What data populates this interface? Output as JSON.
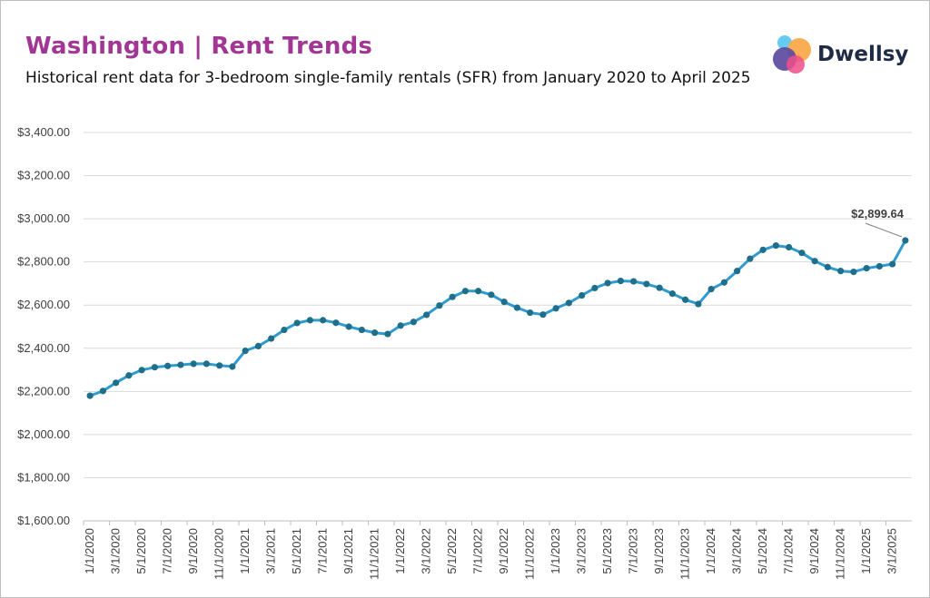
{
  "header": {
    "title": "Washington | Rent Trends",
    "subtitle": "Historical rent data for 3-bedroom single-family rentals (SFR) from January 2020 to April 2025"
  },
  "logo": {
    "text": "Dwellsy"
  },
  "colors": {
    "title": "#a23694",
    "line": "#2e9bd1",
    "marker": "#1f6f8b"
  },
  "chart_data": {
    "type": "line",
    "title": "Washington | Rent Trends",
    "ylim": [
      1600,
      3400
    ],
    "yticks": [
      "$1,600.00",
      "$1,800.00",
      "$2,000.00",
      "$2,200.00",
      "$2,400.00",
      "$2,600.00",
      "$2,800.00",
      "$3,000.00",
      "$3,200.00",
      "$3,400.00"
    ],
    "xtick_labels": [
      "1/1/2020",
      "3/1/2020",
      "5/1/2020",
      "7/1/2020",
      "9/1/2020",
      "11/1/2020",
      "1/1/2021",
      "3/1/2021",
      "5/1/2021",
      "7/1/2021",
      "9/1/2021",
      "11/1/2021",
      "1/1/2022",
      "3/1/2022",
      "5/1/2022",
      "7/1/2022",
      "9/1/2022",
      "11/1/2022",
      "1/1/2023",
      "3/1/2023",
      "5/1/2023",
      "7/1/2023",
      "9/1/2023",
      "11/1/2023",
      "1/1/2024",
      "3/1/2024",
      "5/1/2024",
      "7/1/2024",
      "9/1/2024",
      "11/1/2024",
      "1/1/2025",
      "3/1/2025"
    ],
    "grid": true,
    "series": [
      {
        "values": [
          2180,
          2202,
          2240,
          2274,
          2299,
          2312,
          2318,
          2323,
          2328,
          2328,
          2320,
          2315,
          2388,
          2410,
          2445,
          2485,
          2517,
          2530,
          2530,
          2518,
          2500,
          2485,
          2472,
          2466,
          2505,
          2522,
          2555,
          2598,
          2638,
          2665,
          2665,
          2648,
          2615,
          2588,
          2565,
          2556,
          2585,
          2610,
          2645,
          2679,
          2702,
          2712,
          2710,
          2698,
          2680,
          2653,
          2625,
          2605,
          2674,
          2705,
          2758,
          2815,
          2856,
          2876,
          2868,
          2842,
          2804,
          2776,
          2758,
          2754,
          2771,
          2780,
          2790,
          2899.64
        ]
      }
    ],
    "annotation": {
      "label": "$2,899.64",
      "index": 63
    }
  }
}
